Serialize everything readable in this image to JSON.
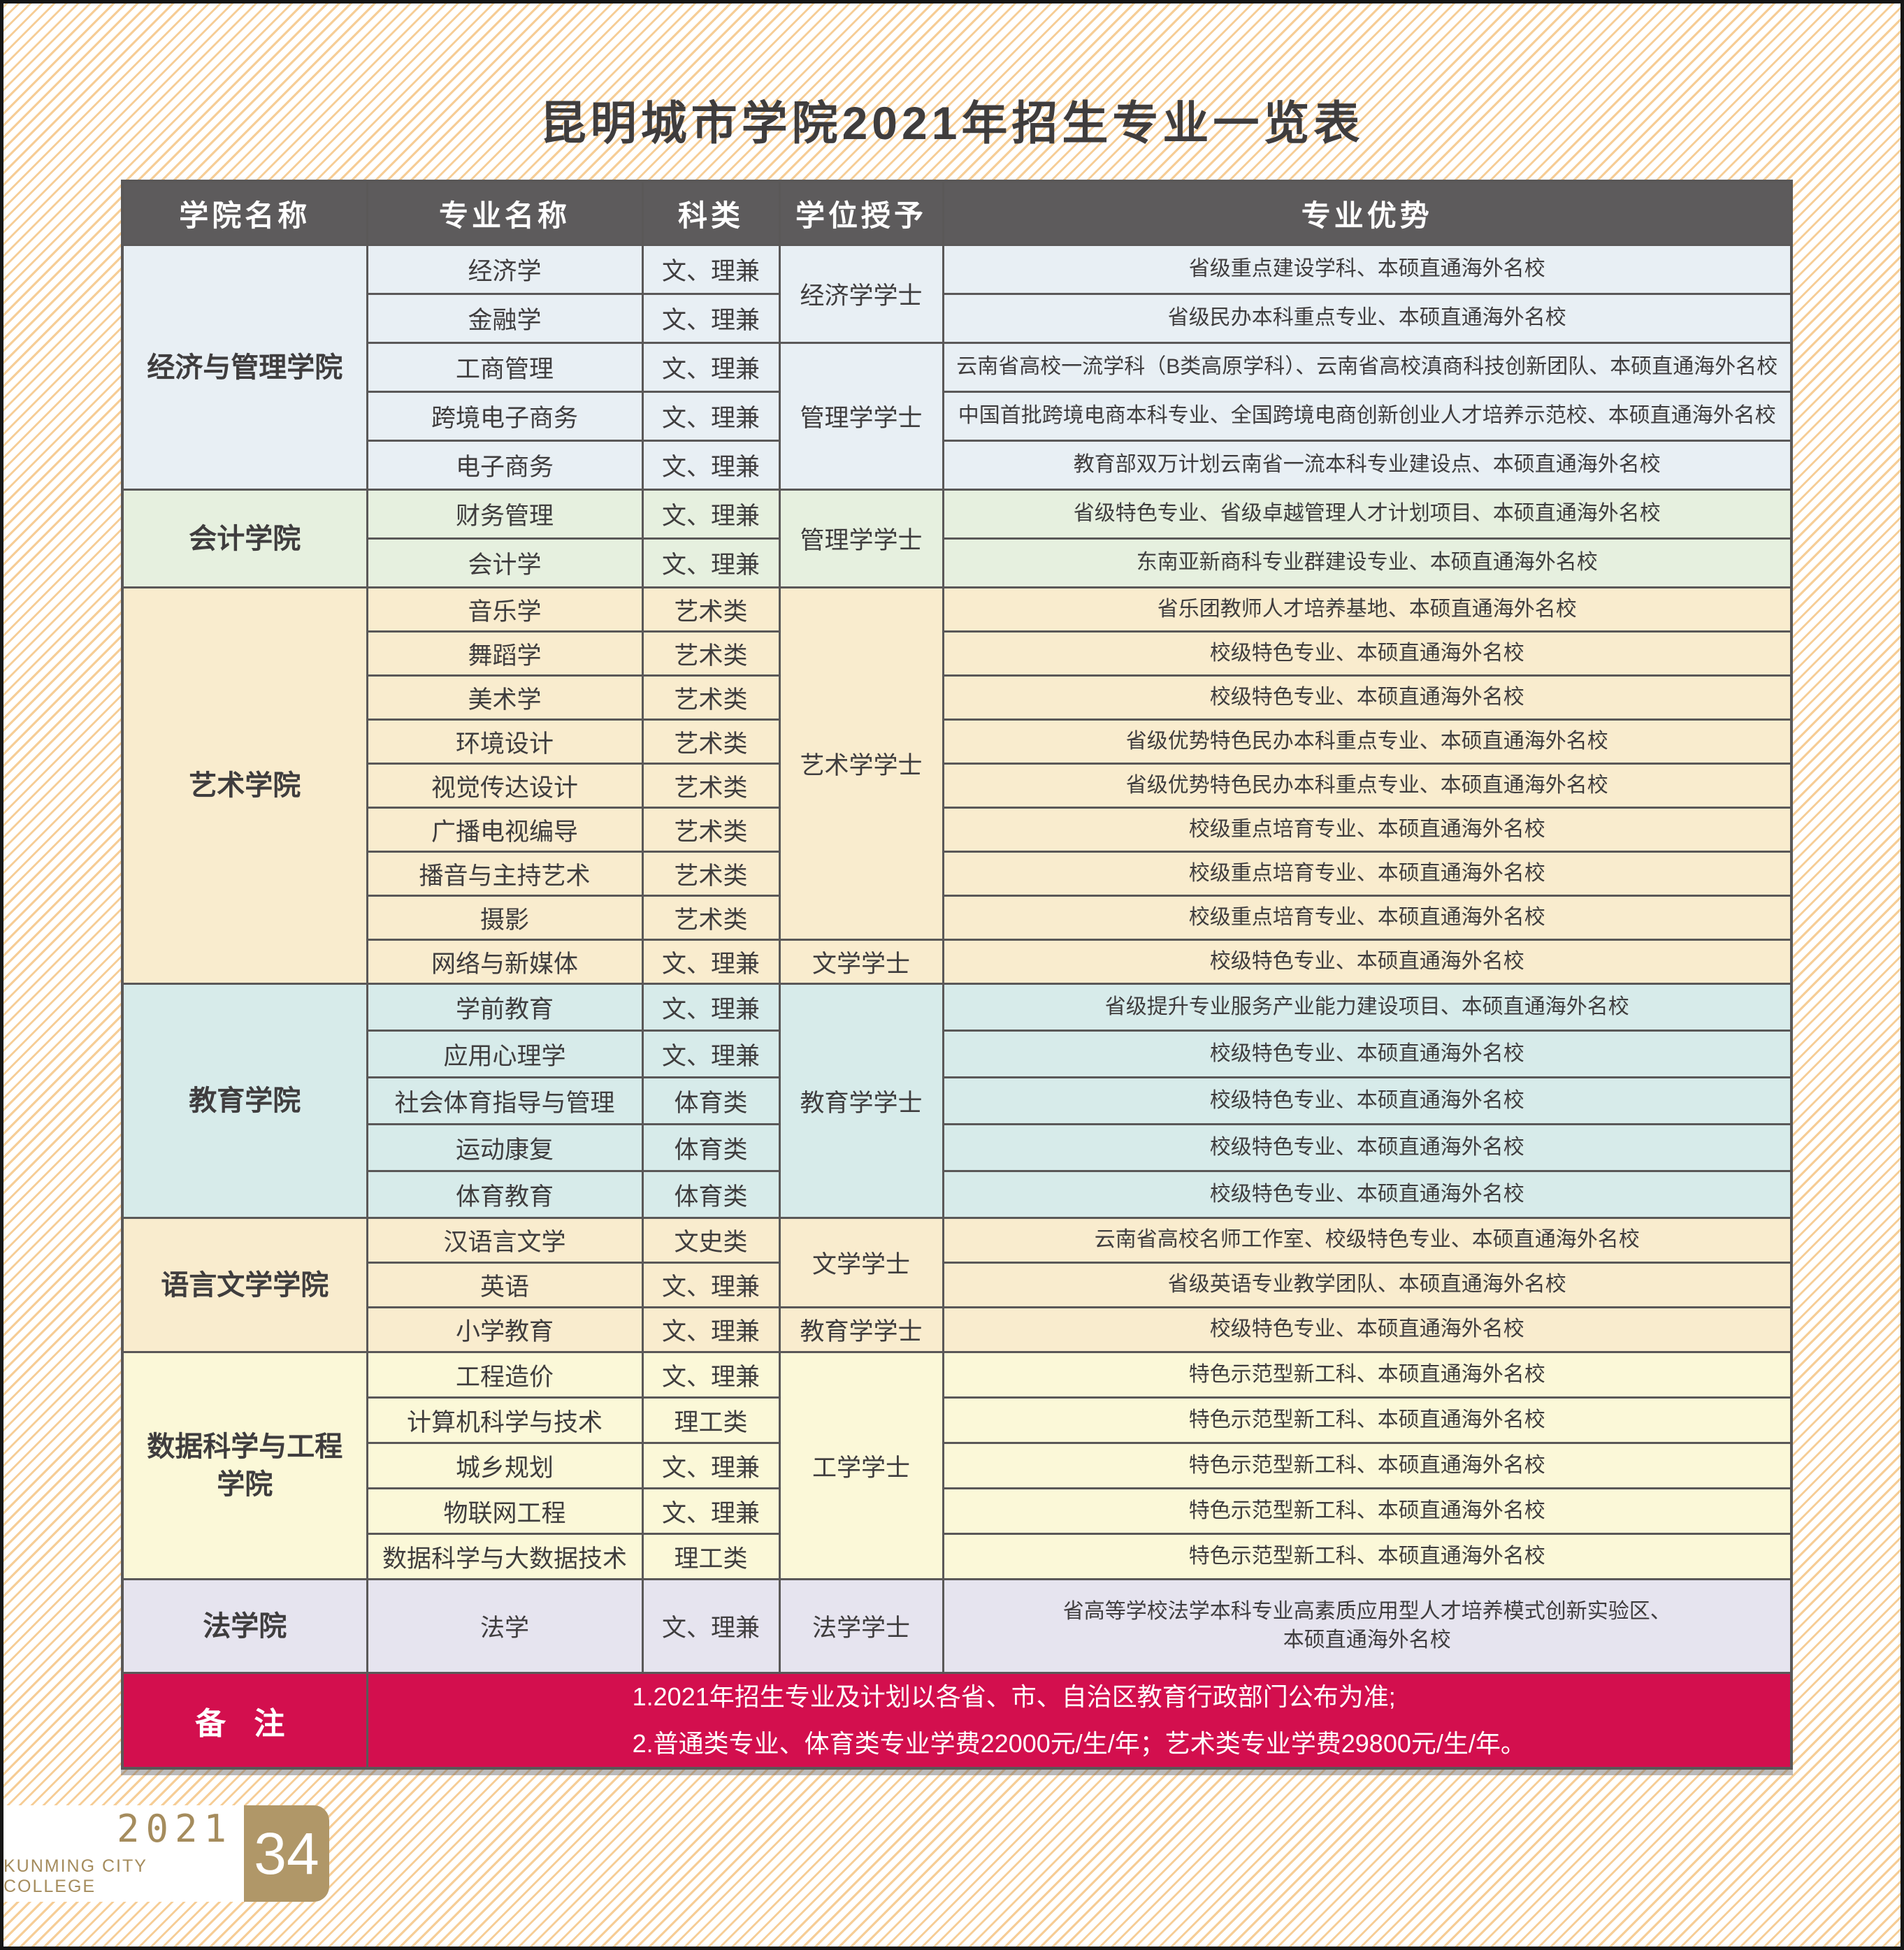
{
  "page": {
    "title": "昆明城市学院2021年招生专业一览表",
    "footer": {
      "year": "2021",
      "college_en": "KUNMING CITY COLLEGE",
      "page_number": "34"
    }
  },
  "colors": {
    "header_bg": "#5d5b5c",
    "grid_line": "#5a5858",
    "title_text": "#3f3d3e",
    "notes_bg": "#d30f4e",
    "notes_text": "#ffffff",
    "footer_gold": "#b09768",
    "background_stripe": "#f6cd96"
  },
  "table": {
    "headers": [
      "学院名称",
      "专业名称",
      "科类",
      "学位授予",
      "专业优势"
    ],
    "colleges": [
      {
        "name": "经济与管理学院",
        "color": "#e8eff4",
        "degrees": [
          {
            "label": "经济学学士",
            "at": 0,
            "span": 2
          },
          {
            "label": "管理学学士",
            "at": 2,
            "span": 3
          }
        ],
        "rows": [
          {
            "major": "经济学",
            "category": "文、理兼",
            "advantage": "省级重点建设学科、本硕直通海外名校"
          },
          {
            "major": "金融学",
            "category": "文、理兼",
            "advantage": "省级民办本科重点专业、本硕直通海外名校"
          },
          {
            "major": "工商管理",
            "category": "文、理兼",
            "advantage": "云南省高校一流学科（B类高原学科）、云南省高校滇商科技创新团队、本硕直通海外名校"
          },
          {
            "major": "跨境电子商务",
            "category": "文、理兼",
            "advantage": "中国首批跨境电商本科专业、全国跨境电商创新创业人才培养示范校、本硕直通海外名校"
          },
          {
            "major": "电子商务",
            "category": "文、理兼",
            "advantage": "教育部双万计划云南省一流本科专业建设点、本硕直通海外名校"
          }
        ]
      },
      {
        "name": "会计学院",
        "color": "#e6f0df",
        "degrees": [
          {
            "label": "管理学学士",
            "at": 0,
            "span": 2
          }
        ],
        "rows": [
          {
            "major": "财务管理",
            "category": "文、理兼",
            "advantage": "省级特色专业、省级卓越管理人才计划项目、本硕直通海外名校"
          },
          {
            "major": "会计学",
            "category": "文、理兼",
            "advantage": "东南亚新商科专业群建设专业、本硕直通海外名校"
          }
        ]
      },
      {
        "name": "艺术学院",
        "color": "#f9ecce",
        "degrees": [
          {
            "label": "艺术学学士",
            "at": 0,
            "span": 8
          },
          {
            "label": "文学学士",
            "at": 8,
            "span": 1
          }
        ],
        "rows": [
          {
            "major": "音乐学",
            "category": "艺术类",
            "advantage": "省乐团教师人才培养基地、本硕直通海外名校"
          },
          {
            "major": "舞蹈学",
            "category": "艺术类",
            "advantage": "校级特色专业、本硕直通海外名校"
          },
          {
            "major": "美术学",
            "category": "艺术类",
            "advantage": "校级特色专业、本硕直通海外名校"
          },
          {
            "major": "环境设计",
            "category": "艺术类",
            "advantage": "省级优势特色民办本科重点专业、本硕直通海外名校"
          },
          {
            "major": "视觉传达设计",
            "category": "艺术类",
            "advantage": "省级优势特色民办本科重点专业、本硕直通海外名校"
          },
          {
            "major": "广播电视编导",
            "category": "艺术类",
            "advantage": "校级重点培育专业、本硕直通海外名校"
          },
          {
            "major": "播音与主持艺术",
            "category": "艺术类",
            "advantage": "校级重点培育专业、本硕直通海外名校"
          },
          {
            "major": "摄影",
            "category": "艺术类",
            "advantage": "校级重点培育专业、本硕直通海外名校"
          },
          {
            "major": "网络与新媒体",
            "category": "文、理兼",
            "advantage": "校级特色专业、本硕直通海外名校"
          }
        ]
      },
      {
        "name": "教育学院",
        "color": "#d7ebea",
        "degrees": [
          {
            "label": "教育学学士",
            "at": 0,
            "span": 5
          }
        ],
        "rows": [
          {
            "major": "学前教育",
            "category": "文、理兼",
            "advantage": "省级提升专业服务产业能力建设项目、本硕直通海外名校"
          },
          {
            "major": "应用心理学",
            "category": "文、理兼",
            "advantage": "校级特色专业、本硕直通海外名校"
          },
          {
            "major": "社会体育指导与管理",
            "category": "体育类",
            "advantage": "校级特色专业、本硕直通海外名校"
          },
          {
            "major": "运动康复",
            "category": "体育类",
            "advantage": "校级特色专业、本硕直通海外名校"
          },
          {
            "major": "体育教育",
            "category": "体育类",
            "advantage": "校级特色专业、本硕直通海外名校"
          }
        ]
      },
      {
        "name": "语言文学学院",
        "color": "#f9ecce",
        "degrees": [
          {
            "label": "文学学士",
            "at": 0,
            "span": 2
          },
          {
            "label": "教育学学士",
            "at": 2,
            "span": 1
          }
        ],
        "rows": [
          {
            "major": "汉语言文学",
            "category": "文史类",
            "advantage": "云南省高校名师工作室、校级特色专业、本硕直通海外名校"
          },
          {
            "major": "英语",
            "category": "文、理兼",
            "advantage": "省级英语专业教学团队、本硕直通海外名校"
          },
          {
            "major": "小学教育",
            "category": "文、理兼",
            "advantage": "校级特色专业、本硕直通海外名校"
          }
        ]
      },
      {
        "name": "数据科学与工程学院",
        "color": "#fbf8d8",
        "degrees": [
          {
            "label": "工学学士",
            "at": 0,
            "span": 5
          }
        ],
        "rows": [
          {
            "major": "工程造价",
            "category": "文、理兼",
            "advantage": "特色示范型新工科、本硕直通海外名校"
          },
          {
            "major": "计算机科学与技术",
            "category": "理工类",
            "advantage": "特色示范型新工科、本硕直通海外名校"
          },
          {
            "major": "城乡规划",
            "category": "文、理兼",
            "advantage": "特色示范型新工科、本硕直通海外名校"
          },
          {
            "major": "物联网工程",
            "category": "文、理兼",
            "advantage": "特色示范型新工科、本硕直通海外名校"
          },
          {
            "major": "数据科学与大数据技术",
            "category": "理工类",
            "advantage": "特色示范型新工科、本硕直通海外名校"
          }
        ]
      },
      {
        "name": "法学院",
        "color": "#e6e4ef",
        "degrees": [
          {
            "label": "法学学士",
            "at": 0,
            "span": 1
          }
        ],
        "rows": [
          {
            "major": "法学",
            "category": "文、理兼",
            "advantage": "省高等学校法学本科专业高素质应用型人才培养模式创新实验区、本硕直通海外名校"
          }
        ]
      }
    ],
    "notes": {
      "label": "备 注",
      "lines": [
        "1.2021年招生专业及计划以各省、市、自治区教育行政部门公布为准;",
        "2.普通类专业、体育类专业学费22000元/生/年；艺术类专业学费29800元/生/年。"
      ]
    }
  }
}
